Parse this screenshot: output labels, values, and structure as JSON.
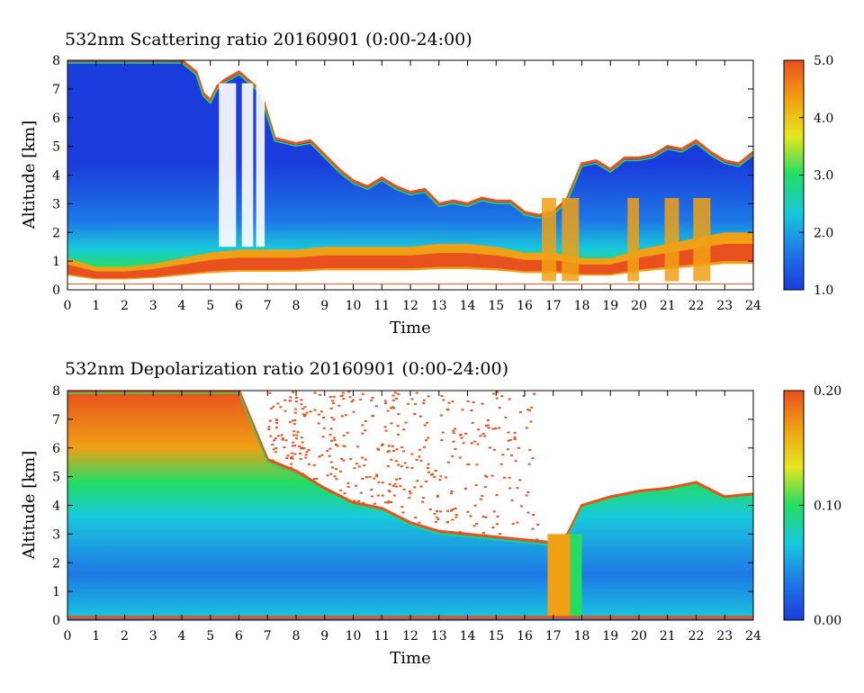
{
  "chart_data": [
    {
      "type": "heatmap",
      "title": "532nm Scattering ratio  20160901 (0:00-24:00)",
      "xlabel": "Time",
      "ylabel": "Altitude [km]",
      "xlim": [
        0,
        24
      ],
      "ylim": [
        0,
        8
      ],
      "x_ticks": [
        0,
        1,
        2,
        3,
        4,
        5,
        6,
        7,
        8,
        9,
        10,
        11,
        12,
        13,
        14,
        15,
        16,
        17,
        18,
        19,
        20,
        21,
        22,
        23,
        24
      ],
      "y_ticks": [
        0,
        1,
        2,
        3,
        4,
        5,
        6,
        7,
        8
      ],
      "colorbar": {
        "min": 1.0,
        "max": 5.0,
        "ticks": [
          "1.0",
          "2.0",
          "3.0",
          "4.0",
          "5.0"
        ]
      },
      "colorbar_ticks": [
        1,
        2,
        3,
        4,
        5
      ],
      "colorbar_labels": [
        "1.0",
        "2.0",
        "3.0",
        "4.0",
        "5.0"
      ],
      "colormap": [
        "#1a3cdc",
        "#1e78e6",
        "#18c8dc",
        "#22dc64",
        "#e6e61e",
        "#f0a014",
        "#e8501e"
      ],
      "cloud_top_km": [
        [
          0,
          8.0
        ],
        [
          1,
          8.0
        ],
        [
          2,
          8.0
        ],
        [
          3,
          8.0
        ],
        [
          4,
          8.0
        ],
        [
          4.5,
          7.6
        ],
        [
          4.9,
          6.4
        ],
        [
          5.3,
          7.2
        ],
        [
          6,
          7.6
        ],
        [
          6.8,
          6.9
        ],
        [
          7.2,
          5.3
        ],
        [
          8,
          5.1
        ],
        [
          8.5,
          5.2
        ],
        [
          9,
          4.7
        ],
        [
          9.5,
          4.2
        ],
        [
          10,
          3.8
        ],
        [
          10.5,
          3.6
        ],
        [
          11,
          3.9
        ],
        [
          11.5,
          3.6
        ],
        [
          12,
          3.4
        ],
        [
          12.5,
          3.5
        ],
        [
          13,
          3.0
        ],
        [
          13.5,
          3.1
        ],
        [
          14,
          3.0
        ],
        [
          14.5,
          3.2
        ],
        [
          15,
          3.1
        ],
        [
          15.5,
          3.1
        ],
        [
          16,
          2.7
        ],
        [
          16.5,
          2.6
        ],
        [
          17,
          2.7
        ],
        [
          17.5,
          3.2
        ],
        [
          18,
          4.4
        ],
        [
          18.5,
          4.5
        ],
        [
          19,
          4.2
        ],
        [
          19.5,
          4.6
        ],
        [
          20,
          4.6
        ],
        [
          20.5,
          4.7
        ],
        [
          21,
          5.0
        ],
        [
          21.5,
          4.9
        ],
        [
          22,
          5.2
        ],
        [
          22.5,
          4.8
        ],
        [
          23,
          4.5
        ],
        [
          23.5,
          4.4
        ],
        [
          24,
          4.8
        ]
      ],
      "boundary_layer_top_km": [
        [
          0,
          1.1
        ],
        [
          1,
          0.8
        ],
        [
          2,
          0.8
        ],
        [
          3,
          0.9
        ],
        [
          4,
          1.1
        ],
        [
          5,
          1.3
        ],
        [
          6,
          1.4
        ],
        [
          7,
          1.4
        ],
        [
          8,
          1.4
        ],
        [
          9,
          1.5
        ],
        [
          10,
          1.5
        ],
        [
          11,
          1.5
        ],
        [
          12,
          1.5
        ],
        [
          13,
          1.6
        ],
        [
          14,
          1.6
        ],
        [
          15,
          1.5
        ],
        [
          16,
          1.3
        ],
        [
          17,
          1.3
        ],
        [
          18,
          1.1
        ],
        [
          19,
          1.1
        ],
        [
          20,
          1.4
        ],
        [
          21,
          1.6
        ],
        [
          22,
          1.8
        ],
        [
          23,
          2.0
        ],
        [
          24,
          2.0
        ]
      ],
      "ground_line_km": 0.2
    },
    {
      "type": "heatmap",
      "title": "532nm Depolarization ratio  20160901 (0:00-24:00)",
      "xlabel": "Time",
      "ylabel": "Altitude [km]",
      "xlim": [
        0,
        24
      ],
      "ylim": [
        0,
        8
      ],
      "x_ticks": [
        0,
        1,
        2,
        3,
        4,
        5,
        6,
        7,
        8,
        9,
        10,
        11,
        12,
        13,
        14,
        15,
        16,
        17,
        18,
        19,
        20,
        21,
        22,
        23,
        24
      ],
      "y_ticks": [
        0,
        1,
        2,
        3,
        4,
        5,
        6,
        7,
        8
      ],
      "colorbar": {
        "min": 0.0,
        "max": 0.2,
        "ticks": [
          "0.00",
          "0.10",
          "0.20"
        ]
      },
      "colorbar_ticks": [
        0,
        0.1,
        0.2
      ],
      "colorbar_labels": [
        "0.00",
        "0.10",
        "0.20"
      ],
      "colormap": [
        "#1a3cdc",
        "#1e78e6",
        "#18c8dc",
        "#22dc64",
        "#e6e61e",
        "#f0a014",
        "#e8501e"
      ],
      "signal_top_km": [
        [
          0,
          8.0
        ],
        [
          1,
          8.0
        ],
        [
          2,
          8.0
        ],
        [
          3,
          8.0
        ],
        [
          4,
          8.0
        ],
        [
          5,
          8.0
        ],
        [
          6,
          8.0
        ],
        [
          7,
          5.6
        ],
        [
          8,
          5.2
        ],
        [
          9,
          4.6
        ],
        [
          10,
          4.1
        ],
        [
          11,
          3.9
        ],
        [
          12,
          3.4
        ],
        [
          13,
          3.1
        ],
        [
          14,
          3.0
        ],
        [
          15,
          2.9
        ],
        [
          16,
          2.8
        ],
        [
          17,
          2.7
        ],
        [
          17.5,
          3.0
        ],
        [
          18,
          4.0
        ],
        [
          19,
          4.3
        ],
        [
          20,
          4.5
        ],
        [
          21,
          4.6
        ],
        [
          22,
          4.8
        ],
        [
          23,
          4.3
        ],
        [
          24,
          4.4
        ]
      ],
      "high_depol_columns_h": [
        [
          16.8,
          17.6
        ],
        [
          17.6,
          18.0
        ]
      ]
    }
  ]
}
